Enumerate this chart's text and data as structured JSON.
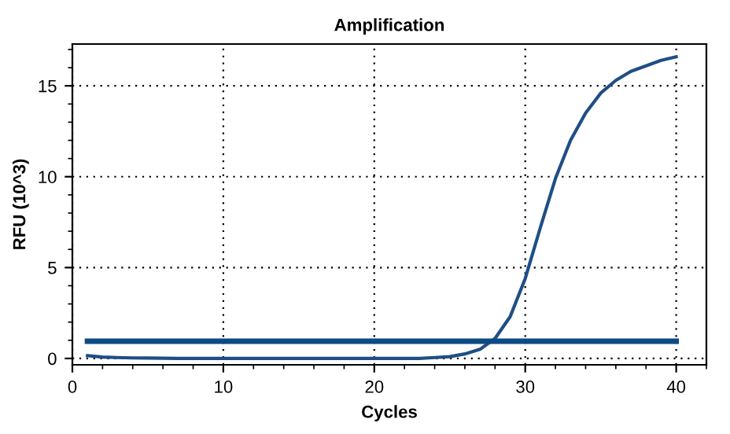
{
  "chart_data": {
    "type": "line",
    "title": "Amplification",
    "xlabel": "Cycles",
    "ylabel": "RFU (10^3)",
    "xlim": [
      0,
      42
    ],
    "ylim": [
      -0.35,
      17.3
    ],
    "xticks": [
      0,
      10,
      20,
      30,
      40
    ],
    "yticks": [
      0,
      5,
      10,
      15
    ],
    "grid": true,
    "legend": false,
    "series": [
      {
        "color": "#1f4e85",
        "x": [
          1,
          2,
          3,
          4,
          5,
          6,
          7,
          8,
          9,
          10,
          11,
          12,
          13,
          14,
          15,
          16,
          17,
          18,
          19,
          20,
          21,
          22,
          23,
          24,
          25,
          26,
          27,
          28,
          29,
          30,
          31,
          32,
          33,
          34,
          35,
          36,
          37,
          38,
          39,
          40
        ],
        "values": [
          0.15,
          0.08,
          0.05,
          0.03,
          0.02,
          0.01,
          0,
          0,
          0,
          0,
          0,
          0,
          0,
          0,
          0,
          0,
          0,
          0,
          0,
          0,
          0,
          0,
          0,
          0.05,
          0.1,
          0.25,
          0.5,
          1.1,
          2.3,
          4.4,
          7.2,
          9.9,
          12.0,
          13.5,
          14.6,
          15.3,
          15.8,
          16.1,
          16.4,
          16.6
        ]
      },
      {
        "color": "#0d4a85",
        "x": [
          1,
          40
        ],
        "values": [
          0.95,
          0.95
        ]
      }
    ]
  }
}
